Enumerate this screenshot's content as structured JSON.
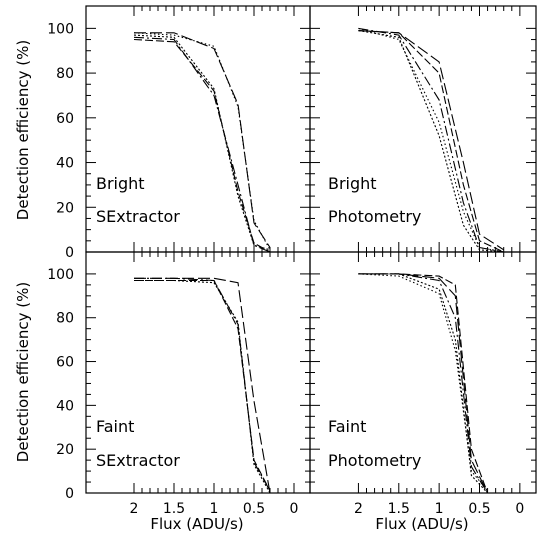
{
  "chart_data": {
    "type": "line",
    "xlabel": "Flux (ADU/s)",
    "ylabel": "Detection efficiency (%)",
    "x_axis": "reversed",
    "xlim": [
      2.6,
      -0.2
    ],
    "ylim": [
      0,
      110
    ],
    "xticks": [
      2,
      1.5,
      1,
      0.5,
      0
    ],
    "xtick_labels": [
      "2",
      "1.5",
      "1",
      "0.5",
      "0"
    ],
    "yticks": [
      0,
      20,
      40,
      60,
      80,
      100
    ],
    "ytick_labels": [
      "0",
      "20",
      "40",
      "60",
      "80",
      "100"
    ],
    "grid": false,
    "panels": [
      {
        "id": "bright-sextractor",
        "labels": [
          "Bright",
          "SExtractor"
        ],
        "series": [
          {
            "dash": "8,3",
            "x": [
              2,
              1.5,
              1,
              0.7,
              0.5,
              0.3
            ],
            "y": [
              95,
              94,
              72,
              27,
              4,
              0
            ]
          },
          {
            "dash": "10,3,2,3",
            "x": [
              2,
              1.5,
              1,
              0.7,
              0.5,
              0.3
            ],
            "y": [
              96,
              95,
              70,
              30,
              3,
              0
            ]
          },
          {
            "dash": "2,2",
            "x": [
              2,
              1.5,
              1,
              0.7,
              0.5,
              0.3
            ],
            "y": [
              97,
              96,
              73,
              25,
              3,
              1
            ]
          },
          {
            "dash": "1.5,2.5",
            "x": [
              2,
              1.5,
              1,
              0.7,
              0.5,
              0.3
            ],
            "y": [
              98,
              97,
              92,
              65,
              14,
              1
            ]
          },
          {
            "dash": "12,4",
            "x": [
              2,
              1.5,
              1,
              0.7,
              0.5,
              0.3
            ],
            "y": [
              98,
              98,
              91,
              66,
              13,
              2
            ]
          }
        ]
      },
      {
        "id": "bright-photometry",
        "labels": [
          "Bright",
          "Photometry"
        ],
        "series": [
          {
            "dash": "8,3",
            "x": [
              2,
              1.5,
              1,
              0.7,
              0.5,
              0.2
            ],
            "y": [
              99,
              98,
              80,
              30,
              5,
              0
            ]
          },
          {
            "dash": "10,3,2,3",
            "x": [
              2,
              1.5,
              1,
              0.7,
              0.5,
              0.2
            ],
            "y": [
              100,
              97,
              68,
              22,
              2,
              0
            ]
          },
          {
            "dash": "2,2",
            "x": [
              2,
              1.5,
              1,
              0.7,
              0.5,
              0.2
            ],
            "y": [
              99,
              96,
              52,
              12,
              1,
              0
            ]
          },
          {
            "dash": "1.5,2.5",
            "x": [
              2,
              1.5,
              1,
              0.7,
              0.5,
              0.2
            ],
            "y": [
              100,
              95,
              58,
              18,
              2,
              0
            ]
          },
          {
            "dash": "12,4",
            "x": [
              2,
              1.5,
              1,
              0.7,
              0.5,
              0.2
            ],
            "y": [
              99,
              98,
              85,
              40,
              8,
              1
            ]
          }
        ]
      },
      {
        "id": "faint-sextractor",
        "labels": [
          "Faint",
          "SExtractor"
        ],
        "series": [
          {
            "dash": "8,3",
            "x": [
              2,
              1.5,
              1,
              0.7,
              0.5,
              0.3
            ],
            "y": [
              97,
              97,
              97,
              75,
              15,
              1
            ]
          },
          {
            "dash": "10,3,2,3",
            "x": [
              2,
              1.5,
              1,
              0.7,
              0.5,
              0.3
            ],
            "y": [
              98,
              98,
              97,
              77,
              14,
              1
            ]
          },
          {
            "dash": "2,2",
            "x": [
              2,
              1.5,
              1,
              0.7,
              0.5,
              0.3
            ],
            "y": [
              97,
              97,
              96,
              78,
              13,
              0
            ]
          },
          {
            "dash": "12,4",
            "x": [
              2,
              1.5,
              1,
              0.7,
              0.5,
              0.3
            ],
            "y": [
              98,
              98,
              98,
              96,
              42,
              0
            ]
          }
        ]
      },
      {
        "id": "faint-photometry",
        "labels": [
          "Faint",
          "Photometry"
        ],
        "series": [
          {
            "dash": "8,3",
            "x": [
              2,
              1.5,
              1,
              0.8,
              0.6,
              0.4
            ],
            "y": [
              100,
              100,
              99,
              95,
              20,
              0
            ]
          },
          {
            "dash": "10,3,2,3",
            "x": [
              2,
              1.5,
              1,
              0.8,
              0.6,
              0.4
            ],
            "y": [
              100,
              100,
              97,
              80,
              12,
              0
            ]
          },
          {
            "dash": "2,2",
            "x": [
              2,
              1.5,
              1,
              0.8,
              0.6,
              0.4
            ],
            "y": [
              100,
              100,
              93,
              70,
              8,
              0
            ]
          },
          {
            "dash": "1.5,2.5",
            "x": [
              2,
              1.5,
              1,
              0.8,
              0.6,
              0.4
            ],
            "y": [
              100,
              99,
              91,
              65,
              10,
              1
            ]
          },
          {
            "dash": "12,4",
            "x": [
              2,
              1.5,
              1,
              0.8,
              0.6,
              0.4
            ],
            "y": [
              100,
              100,
              98,
              90,
              15,
              0
            ]
          }
        ]
      }
    ]
  }
}
